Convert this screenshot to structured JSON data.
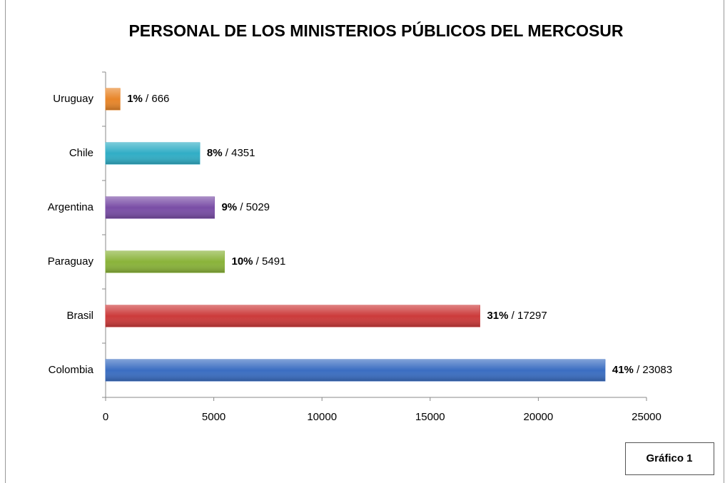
{
  "chart_data": {
    "type": "bar",
    "orientation": "horizontal",
    "title": "PERSONAL DE LOS MINISTERIOS PÚBLICOS DEL MERCOSUR",
    "categories": [
      "Uruguay",
      "Chile",
      "Argentina",
      "Paraguay",
      "Brasil",
      "Colombia"
    ],
    "values": [
      666,
      4351,
      5029,
      5491,
      17297,
      23083
    ],
    "value_labels": [
      "1% / 666",
      "8% / 4351",
      "9% / 5029",
      "10% / 5491",
      "31% / 17297",
      "41% / 23083"
    ],
    "colors": [
      "#e8862a",
      "#31aec6",
      "#7a4ea6",
      "#8ab33a",
      "#cc3b3b",
      "#3b6ec2"
    ],
    "xlim": [
      0,
      25000
    ],
    "xticks": [
      0,
      5000,
      10000,
      15000,
      20000,
      25000
    ],
    "grid": false,
    "caption": "Gráfico 1"
  }
}
